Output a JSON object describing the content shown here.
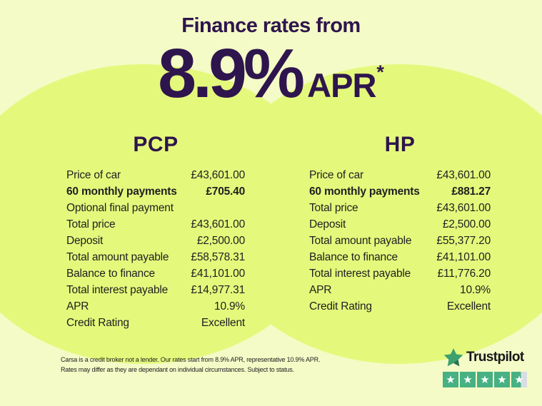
{
  "header": {
    "title": "Finance rates from",
    "rate": "8.9%",
    "rate_suffix": "APR",
    "asterisk": "*"
  },
  "tables": [
    {
      "name": "PCP",
      "rows": [
        {
          "label": "Price of car",
          "value": "£43,601.00",
          "bold": false
        },
        {
          "label": "60 monthly payments",
          "value": "£705.40",
          "bold": true
        },
        {
          "label": "Optional final payment",
          "value": "",
          "bold": false
        },
        {
          "label": "Total price",
          "value": "£43,601.00",
          "bold": false
        },
        {
          "label": "Deposit",
          "value": "£2,500.00",
          "bold": false
        },
        {
          "label": "Total amount payable",
          "value": "£58,578.31",
          "bold": false
        },
        {
          "label": "Balance to finance",
          "value": "£41,101.00",
          "bold": false
        },
        {
          "label": "Total interest payable",
          "value": "£14,977.31",
          "bold": false
        },
        {
          "label": "APR",
          "value": "10.9%",
          "bold": false
        },
        {
          "label": "Credit Rating",
          "value": "Excellent",
          "bold": false
        }
      ]
    },
    {
      "name": "HP",
      "rows": [
        {
          "label": "Price of car",
          "value": "£43,601.00",
          "bold": false
        },
        {
          "label": "60 monthly payments",
          "value": "£881.27",
          "bold": true
        },
        {
          "label": "Total price",
          "value": "£43,601.00",
          "bold": false
        },
        {
          "label": "Deposit",
          "value": "£2,500.00",
          "bold": false
        },
        {
          "label": "Total amount payable",
          "value": "£55,377.20",
          "bold": false
        },
        {
          "label": "Balance to finance",
          "value": "£41,101.00",
          "bold": false
        },
        {
          "label": "Total interest payable",
          "value": "£11,776.20",
          "bold": false
        },
        {
          "label": "APR",
          "value": "10.9%",
          "bold": false
        },
        {
          "label": "Credit Rating",
          "value": "Excellent",
          "bold": false
        }
      ]
    }
  ],
  "disclaimer": {
    "line1": "Carsa is a credit broker not a lender. Our rates start from 8.9% APR, representative 10.9% APR.",
    "line2": "Rates may differ as they are dependant on individual circumstances. Subject to status."
  },
  "trustpilot": {
    "brand": "Trustpilot",
    "stars_total": 5,
    "full_stars": 4,
    "last_star_fill_percent": 62,
    "star_glyph": "★"
  },
  "colors": {
    "purple": "#2e154d",
    "lime_circle": "#e4f97c",
    "pale_background": "#f4fbc6",
    "table_text": "#1f1f1f",
    "trustpilot_green": "#3da06f",
    "trustpilot_green_dark": "#27714e",
    "rating_box_green": "#47b183",
    "rating_box_gray": "#d9dde3"
  }
}
